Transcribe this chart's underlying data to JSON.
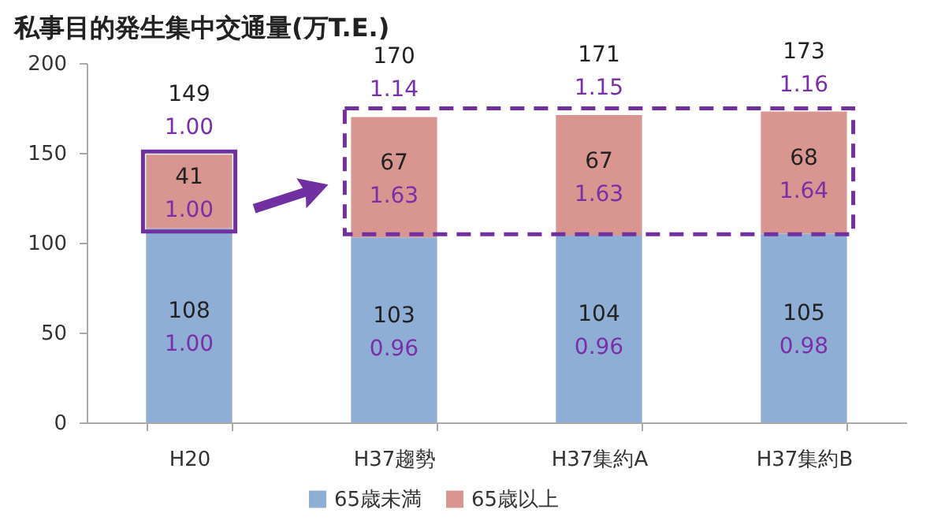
{
  "chart_data": {
    "type": "bar",
    "title": "私事目的発生集中交通量(万T.E.)",
    "categories": [
      "H20",
      "H37趨勢",
      "H37集約A",
      "H37集約B"
    ],
    "series": [
      {
        "name": "65歳未満",
        "color": "#8eaed6",
        "values": [
          108,
          103,
          104,
          105
        ]
      },
      {
        "name": "65歳以上",
        "color": "#d9958f",
        "values": [
          41,
          67,
          67,
          68
        ]
      }
    ],
    "stacked": true,
    "data_labels": true,
    "totals": [
      "149",
      "170",
      "171",
      "173"
    ],
    "annotations": [
      "1.00",
      "0.96",
      "0.96",
      "0.98",
      "1.00",
      "1.63",
      "1.63",
      "1.64",
      "1.00",
      "1.14",
      "1.15",
      "1.16"
    ],
    "ylim": [
      0,
      200
    ],
    "yticks": [
      0,
      50,
      100,
      150,
      200
    ],
    "legend": "bottom",
    "grid": false
  }
}
